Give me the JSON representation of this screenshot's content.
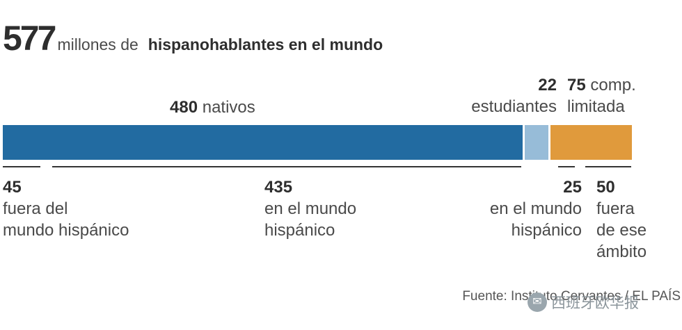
{
  "headline": {
    "number": "577",
    "unit": "millones de",
    "title": "hispanohablantes en el mundo"
  },
  "chart_data": {
    "type": "bar",
    "orientation": "horizontal-stacked",
    "total": 577,
    "segments": [
      {
        "value": 480,
        "label": "nativos",
        "color": "#226ba1"
      },
      {
        "value": 22,
        "label": "estudiantes",
        "color": "#97bcd8"
      },
      {
        "value": 75,
        "label_line1": "comp.",
        "label_line2": "limitada",
        "color": "#e09a3c"
      }
    ],
    "breakdown": [
      {
        "value": 45,
        "line1": "fuera del",
        "line2": "mundo hispánico"
      },
      {
        "value": 435,
        "line1": "en el mundo",
        "line2": "hispánico"
      },
      {
        "value": 25,
        "line1": "en el mundo",
        "line2": "hispánico"
      },
      {
        "value": 50,
        "line1": "fuera",
        "line2": "de ese",
        "line3": "ámbito"
      }
    ]
  },
  "source": "Fuente: Instituto Cervantes / EL PAÍS",
  "watermark": {
    "text": "西班牙欧华报"
  }
}
